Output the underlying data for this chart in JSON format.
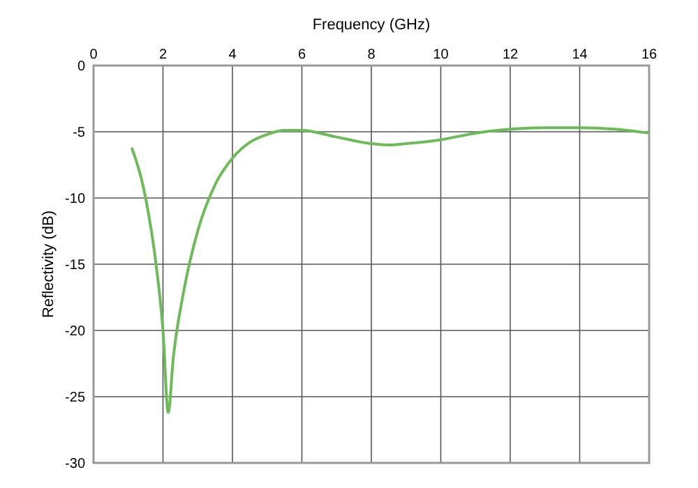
{
  "chart_data": {
    "type": "line",
    "xlabel": "Frequency (GHz)",
    "ylabel": "Reflectivity (dB)",
    "xlim": [
      0,
      16
    ],
    "xticks": [
      0,
      2,
      4,
      6,
      8,
      10,
      12,
      14,
      16
    ],
    "ylim": [
      -30,
      0
    ],
    "yticks": [
      -30,
      -25,
      -20,
      -15,
      -10,
      -5,
      0
    ],
    "grid": true,
    "marker": "none",
    "line_style": "solid",
    "series": [
      {
        "color": "#6dbb58",
        "x": [
          1.1,
          1.5,
          1.8,
          2.0,
          2.15,
          2.3,
          2.6,
          3.0,
          3.5,
          4,
          4.5,
          5,
          5.5,
          6,
          7,
          8,
          8.5,
          9,
          10,
          11,
          12,
          13,
          14,
          15,
          16
        ],
        "values": [
          -6.2,
          -10,
          -15,
          -20,
          -26.2,
          -22,
          -17,
          -12.5,
          -9,
          -7,
          -5.8,
          -5.2,
          -4.9,
          -4.9,
          -5.4,
          -5.9,
          -6.0,
          -5.9,
          -5.6,
          -5.1,
          -4.8,
          -4.7,
          -4.7,
          -4.8,
          -5.1
        ]
      }
    ]
  }
}
